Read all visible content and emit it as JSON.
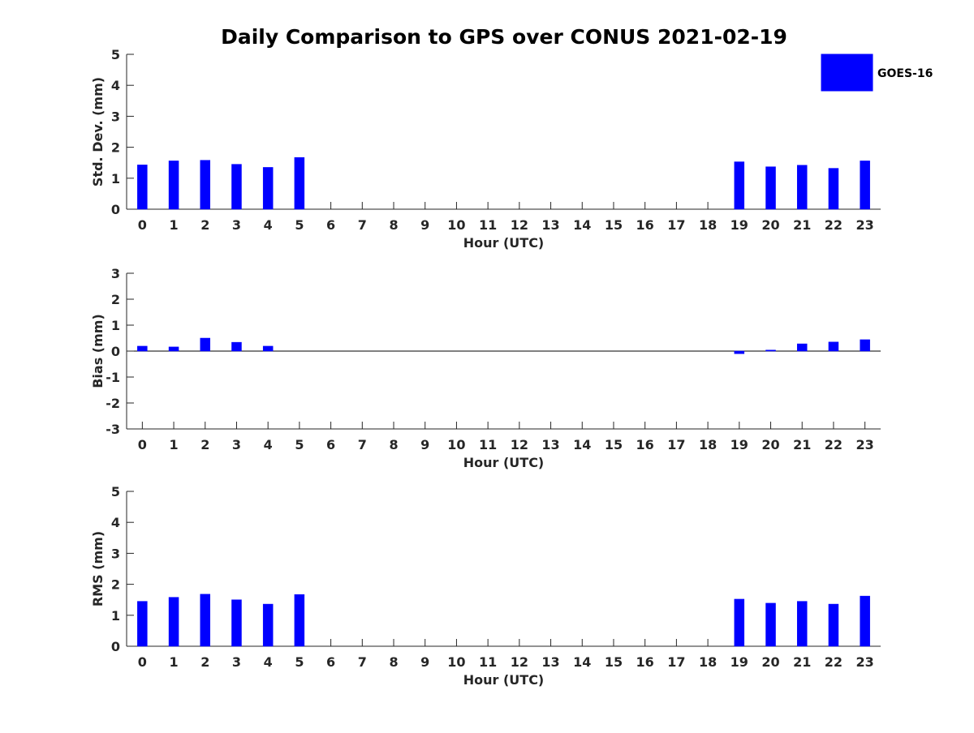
{
  "chart_data": {
    "title": "Daily Comparison to GPS over CONUS 2021-02-19",
    "legend": {
      "position": "top-right",
      "entries": [
        {
          "label": "GOES-16",
          "color": "#0000ff"
        }
      ]
    },
    "panels": [
      {
        "id": "std",
        "type": "bar",
        "ylabel": "Std. Dev. (mm)",
        "xlabel": "Hour (UTC)",
        "ylim": [
          0,
          5
        ],
        "yticks": [
          0,
          1,
          2,
          3,
          4,
          5
        ],
        "x": [
          0,
          1,
          2,
          3,
          4,
          5,
          6,
          7,
          8,
          9,
          10,
          11,
          12,
          13,
          14,
          15,
          16,
          17,
          18,
          19,
          20,
          21,
          22,
          23
        ],
        "series": [
          {
            "name": "GOES-16",
            "color": "#0000ff",
            "values": [
              1.43,
              1.56,
              1.58,
              1.45,
              1.35,
              1.67,
              null,
              null,
              null,
              null,
              null,
              null,
              null,
              null,
              null,
              null,
              null,
              null,
              null,
              1.53,
              1.37,
              1.42,
              1.32,
              1.56
            ]
          }
        ],
        "grid": false
      },
      {
        "id": "bias",
        "type": "bar",
        "ylabel": "Bias (mm)",
        "xlabel": "Hour (UTC)",
        "ylim": [
          -3,
          3
        ],
        "yticks": [
          -3,
          -2,
          -1,
          0,
          1,
          2,
          3
        ],
        "x": [
          0,
          1,
          2,
          3,
          4,
          5,
          6,
          7,
          8,
          9,
          10,
          11,
          12,
          13,
          14,
          15,
          16,
          17,
          18,
          19,
          20,
          21,
          22,
          23
        ],
        "series": [
          {
            "name": "GOES-16",
            "color": "#0000ff",
            "values": [
              0.19,
              0.16,
              0.5,
              0.34,
              0.19,
              null,
              null,
              null,
              null,
              null,
              null,
              null,
              null,
              null,
              null,
              null,
              null,
              null,
              null,
              -0.1,
              0.04,
              0.28,
              0.35,
              0.44
            ]
          }
        ],
        "zero_line": true,
        "grid": false
      },
      {
        "id": "rms",
        "type": "bar",
        "ylabel": "RMS (mm)",
        "xlabel": "Hour (UTC)",
        "ylim": [
          0,
          5
        ],
        "yticks": [
          0,
          1,
          2,
          3,
          4,
          5
        ],
        "x": [
          0,
          1,
          2,
          3,
          4,
          5,
          6,
          7,
          8,
          9,
          10,
          11,
          12,
          13,
          14,
          15,
          16,
          17,
          18,
          19,
          20,
          21,
          22,
          23
        ],
        "series": [
          {
            "name": "GOES-16",
            "color": "#0000ff",
            "values": [
              1.45,
              1.58,
              1.68,
              1.5,
              1.36,
              1.67,
              null,
              null,
              null,
              null,
              null,
              null,
              null,
              null,
              null,
              null,
              null,
              null,
              null,
              1.52,
              1.39,
              1.45,
              1.36,
              1.62
            ]
          }
        ],
        "grid": false
      }
    ]
  }
}
